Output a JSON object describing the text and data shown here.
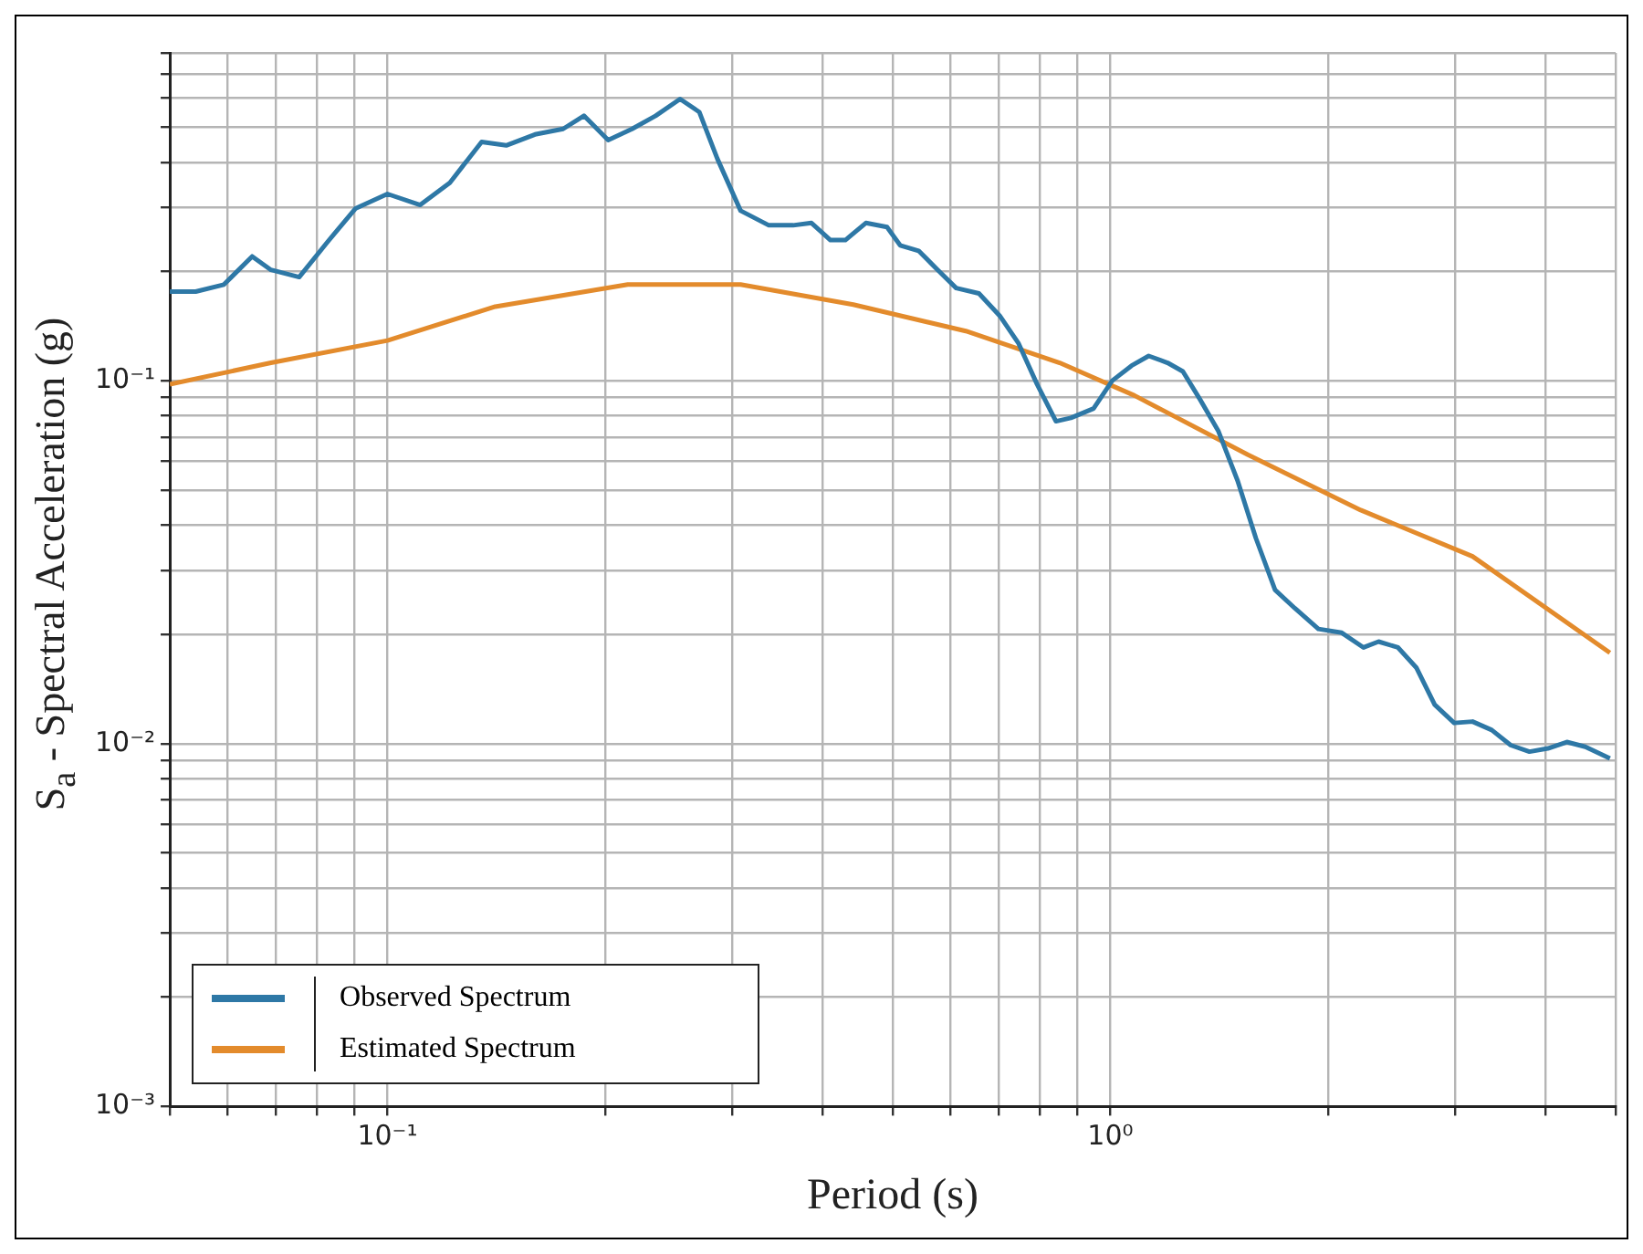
{
  "chart_data": {
    "type": "line",
    "xlabel": "Period (s)",
    "ylabel": "S$_{a}$ - Spectral Acceleration  (g)",
    "log": "xy",
    "grid": true,
    "legend": "bottom left",
    "marker": "none",
    "line_style": "solid",
    "xlim": [
      0.05,
      5
    ],
    "ylim": [
      0.001,
      0.8
    ],
    "xticks": [
      {
        "value": 0.05,
        "label": null
      },
      {
        "value": 0.06,
        "label": null
      },
      {
        "value": 0.07,
        "label": null
      },
      {
        "value": 0.08,
        "label": null
      },
      {
        "value": 0.09,
        "label": null
      },
      {
        "value": 0.1,
        "label": "10⁻¹"
      },
      {
        "value": 0.2,
        "label": null
      },
      {
        "value": 0.3,
        "label": null
      },
      {
        "value": 0.4,
        "label": null
      },
      {
        "value": 0.5,
        "label": null
      },
      {
        "value": 0.6,
        "label": null
      },
      {
        "value": 0.7,
        "label": null
      },
      {
        "value": 0.8,
        "label": null
      },
      {
        "value": 0.9,
        "label": null
      },
      {
        "value": 1,
        "label": "10⁰"
      },
      {
        "value": 2,
        "label": null
      },
      {
        "value": 3,
        "label": null
      },
      {
        "value": 4,
        "label": null
      },
      {
        "value": 5,
        "label": null
      }
    ],
    "yticks": [
      {
        "value": 0.001,
        "label": "10⁻³"
      },
      {
        "value": 0.002,
        "label": null
      },
      {
        "value": 0.003,
        "label": null
      },
      {
        "value": 0.004,
        "label": null
      },
      {
        "value": 0.005,
        "label": null
      },
      {
        "value": 0.006,
        "label": null
      },
      {
        "value": 0.007,
        "label": null
      },
      {
        "value": 0.008,
        "label": null
      },
      {
        "value": 0.009,
        "label": null
      },
      {
        "value": 0.01,
        "label": "10⁻²"
      },
      {
        "value": 0.02,
        "label": null
      },
      {
        "value": 0.03,
        "label": null
      },
      {
        "value": 0.04,
        "label": null
      },
      {
        "value": 0.05,
        "label": null
      },
      {
        "value": 0.06,
        "label": null
      },
      {
        "value": 0.07,
        "label": null
      },
      {
        "value": 0.08,
        "label": null
      },
      {
        "value": 0.09,
        "label": null
      },
      {
        "value": 0.1,
        "label": "10⁻¹"
      },
      {
        "value": 0.2,
        "label": null
      },
      {
        "value": 0.3,
        "label": null
      },
      {
        "value": 0.4,
        "label": null
      },
      {
        "value": 0.5,
        "label": null
      },
      {
        "value": 0.6,
        "label": null
      },
      {
        "value": 0.7,
        "label": null
      },
      {
        "value": 0.8,
        "label": null
      }
    ],
    "series": [
      {
        "name": "Observed Spectrum",
        "color": "#2e78a6",
        "x": [
          0.05,
          0.0543,
          0.0594,
          0.065,
          0.069,
          0.0755,
          0.0826,
          0.0903,
          0.1,
          0.111,
          0.122,
          0.135,
          0.146,
          0.16,
          0.175,
          0.187,
          0.202,
          0.218,
          0.235,
          0.254,
          0.27,
          0.286,
          0.308,
          0.337,
          0.364,
          0.386,
          0.41,
          0.43,
          0.459,
          0.491,
          0.512,
          0.543,
          0.577,
          0.612,
          0.658,
          0.703,
          0.746,
          0.792,
          0.841,
          0.882,
          0.948,
          1.006,
          1.07,
          1.13,
          1.2,
          1.26,
          1.33,
          1.41,
          1.5,
          1.59,
          1.69,
          1.8,
          1.94,
          2.09,
          2.24,
          2.35,
          2.5,
          2.65,
          2.81,
          2.99,
          3.17,
          3.37,
          3.58,
          3.8,
          4.03,
          4.28,
          4.54,
          4.91
        ],
        "values": [
          0.176,
          0.176,
          0.184,
          0.22,
          0.202,
          0.193,
          0.241,
          0.298,
          0.327,
          0.305,
          0.351,
          0.455,
          0.445,
          0.477,
          0.494,
          0.537,
          0.46,
          0.494,
          0.537,
          0.597,
          0.55,
          0.409,
          0.294,
          0.268,
          0.268,
          0.272,
          0.244,
          0.244,
          0.272,
          0.265,
          0.236,
          0.228,
          0.202,
          0.18,
          0.174,
          0.151,
          0.127,
          0.0977,
          0.0773,
          0.079,
          0.0838,
          0.1,
          0.11,
          0.117,
          0.112,
          0.106,
          0.0889,
          0.0728,
          0.053,
          0.0368,
          0.0265,
          0.0236,
          0.0207,
          0.0202,
          0.0184,
          0.0191,
          0.0184,
          0.0162,
          0.0128,
          0.0114,
          0.0115,
          0.0109,
          0.0099,
          0.0095,
          0.0097,
          0.0101,
          0.0098,
          0.0091
        ]
      },
      {
        "name": "Estimated Spectrum",
        "color": "#e38b2c",
        "x": [
          0.05,
          0.069,
          0.1,
          0.141,
          0.215,
          0.308,
          0.441,
          0.631,
          0.851,
          1.08,
          1.55,
          2.22,
          3.17,
          4.91
        ],
        "values": [
          0.0977,
          0.112,
          0.129,
          0.16,
          0.184,
          0.184,
          0.162,
          0.137,
          0.112,
          0.091,
          0.0625,
          0.044,
          0.0328,
          0.0178
        ]
      }
    ]
  }
}
